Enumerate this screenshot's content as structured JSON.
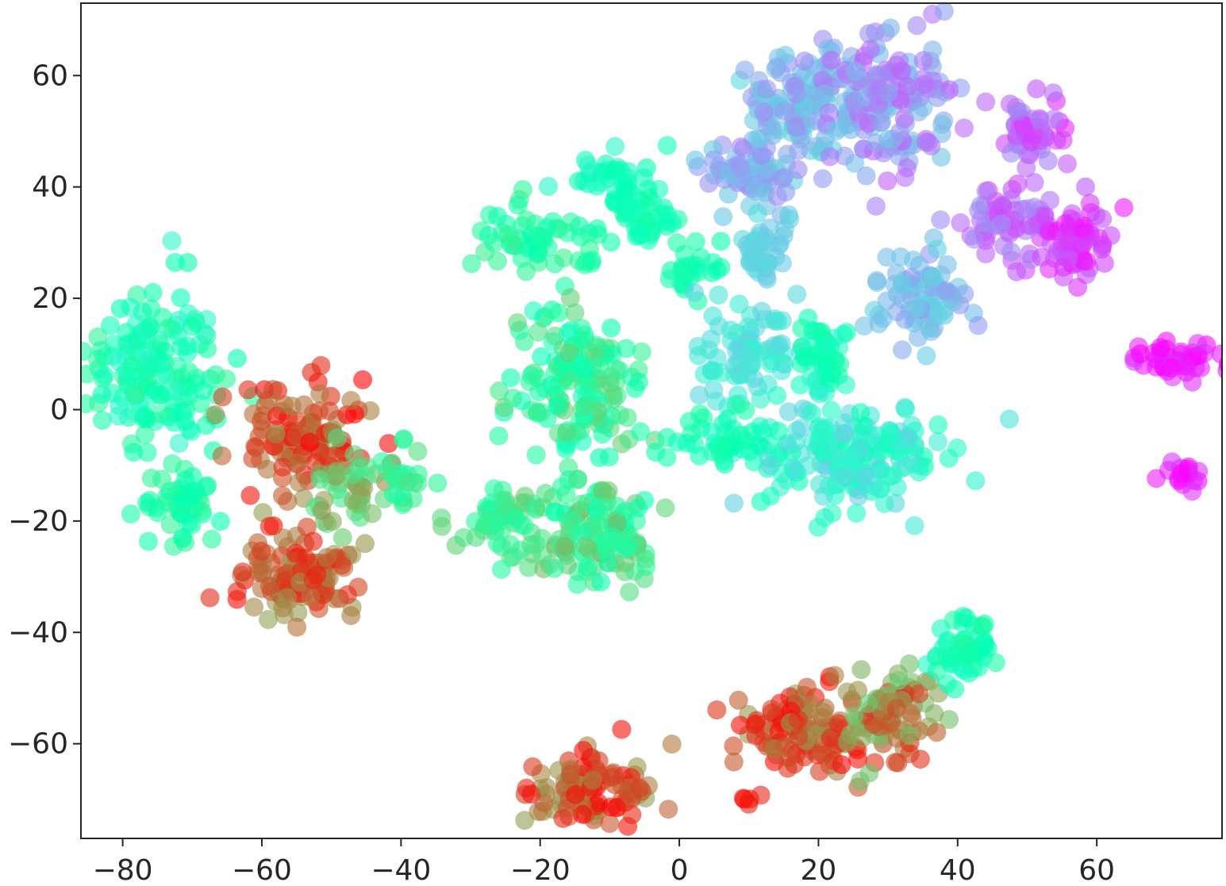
{
  "chart_data": {
    "type": "scatter",
    "title": "",
    "xlabel": "",
    "ylabel": "",
    "xlim": [
      -86,
      78
    ],
    "ylim": [
      -77,
      73
    ],
    "grid": false,
    "legend": "none",
    "colormap": "rainbow",
    "point_alpha": 0.6,
    "x_ticks": [
      {
        "value": -80,
        "label": "−80"
      },
      {
        "value": -60,
        "label": "−60"
      },
      {
        "value": -40,
        "label": "−40"
      },
      {
        "value": -20,
        "label": "−20"
      },
      {
        "value": 0,
        "label": "0"
      },
      {
        "value": 20,
        "label": "20"
      },
      {
        "value": 40,
        "label": "40"
      },
      {
        "value": 60,
        "label": "60"
      }
    ],
    "y_ticks": [
      {
        "value": 60,
        "label": "60"
      },
      {
        "value": 40,
        "label": "40"
      },
      {
        "value": 20,
        "label": "20"
      },
      {
        "value": 0,
        "label": "0"
      },
      {
        "value": -20,
        "label": "−20"
      },
      {
        "value": -40,
        "label": "−40"
      },
      {
        "value": -60,
        "label": "−60"
      }
    ],
    "clusters": [
      {
        "cx": -75,
        "cy": 8,
        "rx": 9,
        "ry": 14,
        "n": 150,
        "c": [
          0.4,
          0.6
        ]
      },
      {
        "cx": -72,
        "cy": -16,
        "rx": 5,
        "ry": 6,
        "n": 50,
        "c": [
          0.5,
          0.6
        ]
      },
      {
        "cx": -53,
        "cy": -5,
        "rx": 8,
        "ry": 9,
        "n": 110,
        "c": [
          0.8,
          1.0
        ]
      },
      {
        "cx": -55,
        "cy": -30,
        "rx": 9,
        "ry": 6,
        "n": 110,
        "c": [
          0.78,
          1.0
        ]
      },
      {
        "cx": -48,
        "cy": -15,
        "rx": 5,
        "ry": 6,
        "n": 40,
        "c": [
          0.62,
          0.8
        ]
      },
      {
        "cx": -40,
        "cy": -12,
        "rx": 3,
        "ry": 6,
        "n": 25,
        "c": [
          0.55,
          0.66
        ]
      },
      {
        "cx": -20,
        "cy": 30,
        "rx": 7,
        "ry": 6,
        "n": 60,
        "c": [
          0.5,
          0.62
        ]
      },
      {
        "cx": -10,
        "cy": 42,
        "rx": 6,
        "ry": 5,
        "n": 35,
        "c": [
          0.4,
          0.52
        ]
      },
      {
        "cx": -5,
        "cy": 35,
        "rx": 5,
        "ry": 4,
        "n": 40,
        "c": [
          0.45,
          0.56
        ]
      },
      {
        "cx": -15,
        "cy": 5,
        "rx": 9,
        "ry": 14,
        "n": 150,
        "c": [
          0.45,
          0.7
        ]
      },
      {
        "cx": -25,
        "cy": -20,
        "rx": 6,
        "ry": 6,
        "n": 60,
        "c": [
          0.55,
          0.7
        ]
      },
      {
        "cx": -12,
        "cy": -22,
        "rx": 8,
        "ry": 8,
        "n": 120,
        "c": [
          0.5,
          0.75
        ]
      },
      {
        "cx": -12,
        "cy": -68,
        "rx": 8,
        "ry": 6,
        "n": 100,
        "c": [
          0.78,
          1.0
        ]
      },
      {
        "cx": 2,
        "cy": 25,
        "rx": 4,
        "ry": 4,
        "n": 25,
        "c": [
          0.45,
          0.55
        ]
      },
      {
        "cx": 10,
        "cy": 42,
        "rx": 6,
        "ry": 5,
        "n": 70,
        "c": [
          0.18,
          0.3
        ]
      },
      {
        "cx": 12,
        "cy": 28,
        "rx": 4,
        "ry": 5,
        "n": 40,
        "c": [
          0.28,
          0.34
        ]
      },
      {
        "cx": 18,
        "cy": 55,
        "rx": 8,
        "ry": 10,
        "n": 130,
        "c": [
          0.18,
          0.32
        ]
      },
      {
        "cx": 30,
        "cy": 55,
        "rx": 8,
        "ry": 12,
        "n": 130,
        "c": [
          0.12,
          0.28
        ]
      },
      {
        "cx": 35,
        "cy": 20,
        "rx": 6,
        "ry": 8,
        "n": 80,
        "c": [
          0.2,
          0.32
        ]
      },
      {
        "cx": 10,
        "cy": 10,
        "rx": 7,
        "ry": 7,
        "n": 80,
        "c": [
          0.3,
          0.4
        ]
      },
      {
        "cx": 20,
        "cy": 10,
        "rx": 4,
        "ry": 6,
        "n": 50,
        "c": [
          0.4,
          0.55
        ]
      },
      {
        "cx": 25,
        "cy": -8,
        "rx": 14,
        "ry": 9,
        "n": 180,
        "c": [
          0.3,
          0.5
        ]
      },
      {
        "cx": 5,
        "cy": -5,
        "rx": 6,
        "ry": 4,
        "n": 40,
        "c": [
          0.45,
          0.55
        ]
      },
      {
        "cx": 50,
        "cy": 50,
        "rx": 5,
        "ry": 6,
        "n": 50,
        "c": [
          0.05,
          0.18
        ]
      },
      {
        "cx": 47,
        "cy": 33,
        "rx": 7,
        "ry": 6,
        "n": 60,
        "c": [
          0.08,
          0.2
        ]
      },
      {
        "cx": 57,
        "cy": 30,
        "rx": 6,
        "ry": 6,
        "n": 70,
        "c": [
          0.02,
          0.12
        ]
      },
      {
        "cx": 72,
        "cy": 9,
        "rx": 6,
        "ry": 3,
        "n": 45,
        "c": [
          0.0,
          0.08
        ]
      },
      {
        "cx": 72,
        "cy": -12,
        "rx": 3,
        "ry": 3,
        "n": 15,
        "c": [
          0.0,
          0.08
        ]
      },
      {
        "cx": 18,
        "cy": -58,
        "rx": 8,
        "ry": 8,
        "n": 110,
        "c": [
          0.78,
          1.0
        ]
      },
      {
        "cx": 30,
        "cy": -55,
        "rx": 6,
        "ry": 7,
        "n": 90,
        "c": [
          0.7,
          0.95
        ]
      },
      {
        "cx": 41,
        "cy": -43,
        "rx": 4,
        "ry": 5,
        "n": 50,
        "c": [
          0.45,
          0.58
        ]
      },
      {
        "cx": 10,
        "cy": -70,
        "rx": 2,
        "ry": 1,
        "n": 5,
        "c": [
          0.95,
          1.0
        ]
      }
    ]
  }
}
